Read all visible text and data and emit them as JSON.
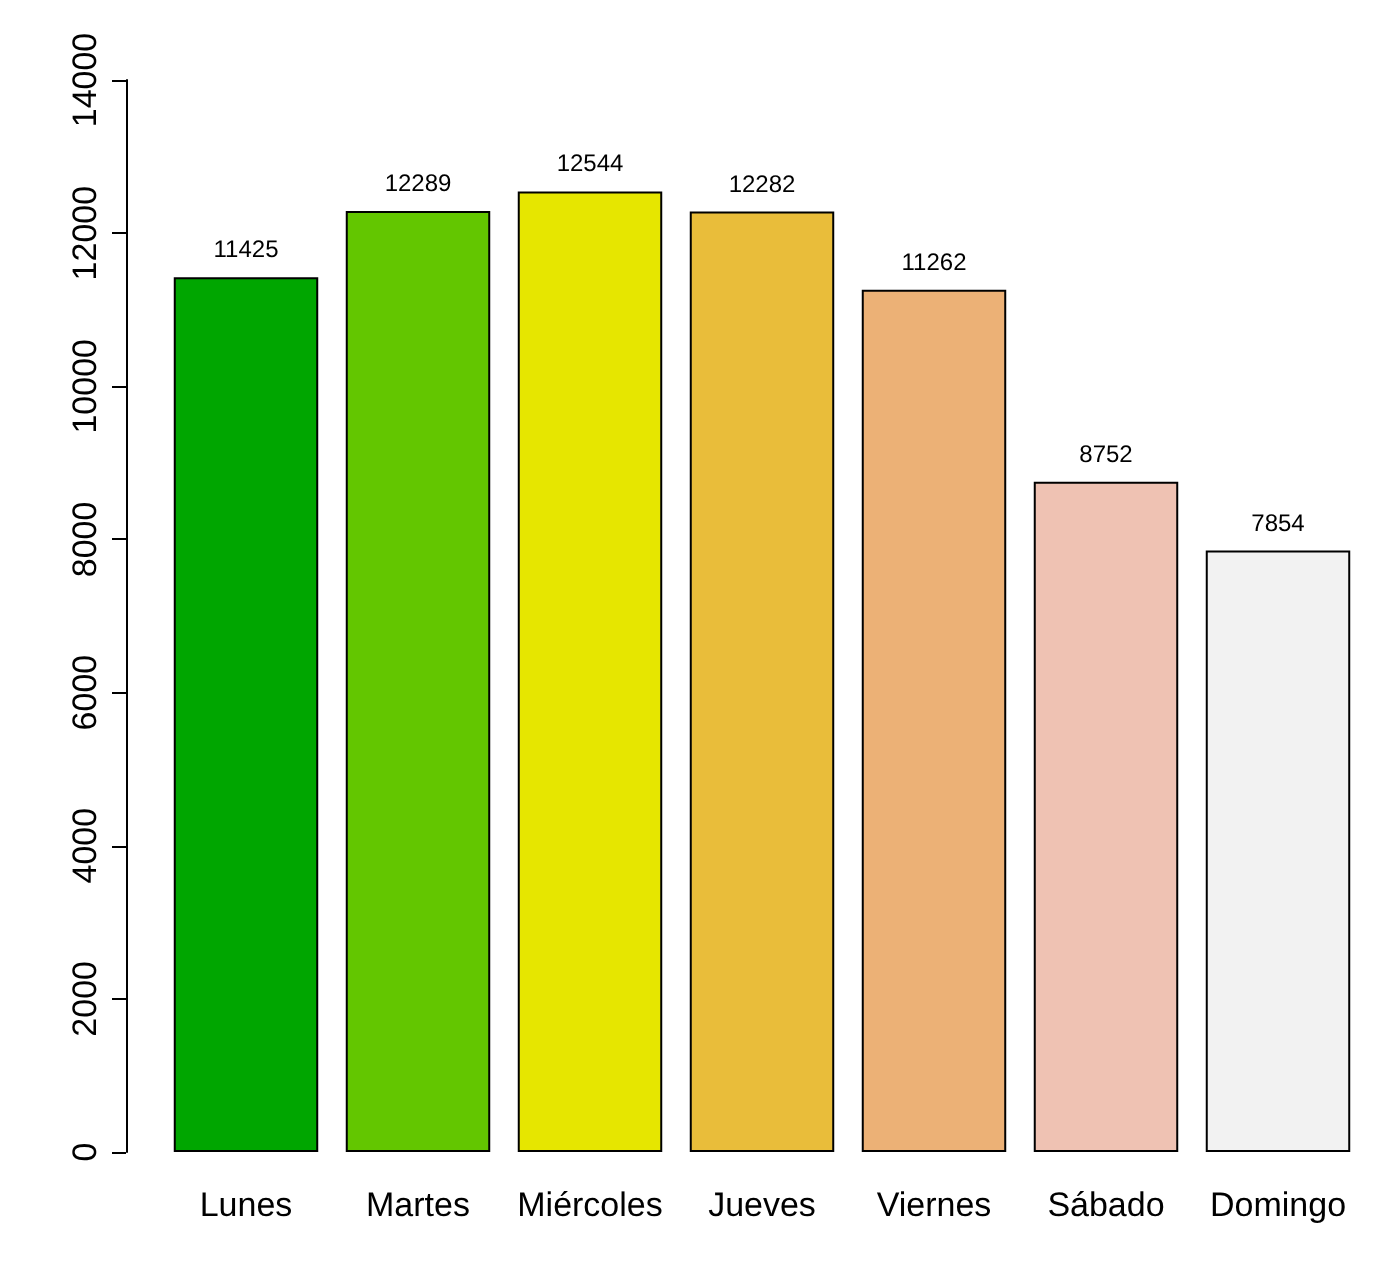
{
  "chart_data": {
    "type": "bar",
    "categories": [
      "Lunes",
      "Martes",
      "Miércoles",
      "Jueves",
      "Viernes",
      "Sábado",
      "Domingo"
    ],
    "values": [
      11425,
      12289,
      12544,
      12282,
      11262,
      8752,
      7854
    ],
    "colors": [
      "#00a600",
      "#63c600",
      "#e6e600",
      "#e9bd3a",
      "#ecb176",
      "#efc2b3",
      "#f2f2f2"
    ],
    "ylim": [
      0,
      14000
    ],
    "yticks": [
      0,
      2000,
      4000,
      6000,
      8000,
      10000,
      12000,
      14000
    ],
    "grid": false,
    "data_labels": true
  }
}
